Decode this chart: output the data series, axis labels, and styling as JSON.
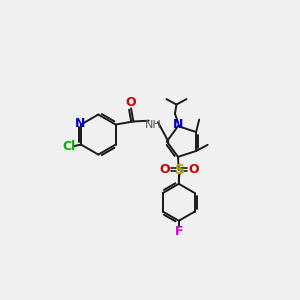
{
  "bg_color": "#f0f0f0",
  "bond_color": "#1a1a1a",
  "colors": {
    "N": "#0000cc",
    "O": "#cc0000",
    "Cl": "#00aa00",
    "S": "#aaaa00",
    "F": "#cc00cc",
    "C": "#1a1a1a",
    "H": "#555555"
  },
  "figsize": [
    3.0,
    3.0
  ],
  "dpi": 100
}
